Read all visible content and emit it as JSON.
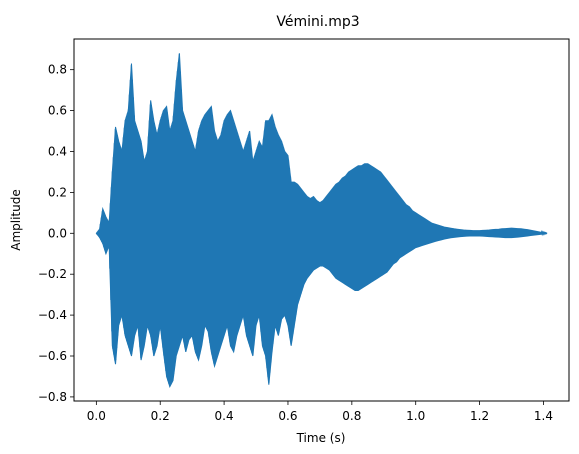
{
  "chart_data": {
    "type": "line",
    "title": "Vémini.mp3",
    "xlabel": "Time (s)",
    "ylabel": "Amplitude",
    "xlim": [
      -0.07,
      1.48
    ],
    "ylim": [
      -0.82,
      0.95
    ],
    "xticks": [
      0.0,
      0.2,
      0.4,
      0.6,
      0.8,
      1.0,
      1.2,
      1.4
    ],
    "xtick_labels": [
      "0.0",
      "0.2",
      "0.4",
      "0.6",
      "0.8",
      "1.0",
      "1.2",
      "1.4"
    ],
    "yticks": [
      -0.8,
      -0.6,
      -0.4,
      -0.2,
      0.0,
      0.2,
      0.4,
      0.6,
      0.8
    ],
    "ytick_labels": [
      "−0.8",
      "−0.6",
      "−0.4",
      "−0.2",
      "0.0",
      "0.2",
      "0.4",
      "0.6",
      "0.8"
    ],
    "grid": false,
    "line_color": "#1f77b4",
    "series": [
      {
        "x": [
          0.0,
          0.01,
          0.02,
          0.03,
          0.04,
          0.05,
          0.06,
          0.07,
          0.08,
          0.09,
          0.1,
          0.11,
          0.12,
          0.13,
          0.14,
          0.15,
          0.16,
          0.17,
          0.18,
          0.19,
          0.2,
          0.21,
          0.22,
          0.23,
          0.24,
          0.25,
          0.26,
          0.27,
          0.28,
          0.29,
          0.3,
          0.31,
          0.32,
          0.33,
          0.34,
          0.35,
          0.36,
          0.37,
          0.38,
          0.39,
          0.4,
          0.41,
          0.42,
          0.43,
          0.44,
          0.45,
          0.46,
          0.47,
          0.48,
          0.49,
          0.5,
          0.51,
          0.52,
          0.53,
          0.54,
          0.55,
          0.56,
          0.57,
          0.58,
          0.59,
          0.6,
          0.61,
          0.62,
          0.63,
          0.64,
          0.65,
          0.66,
          0.67,
          0.68,
          0.69,
          0.7,
          0.71,
          0.72,
          0.73,
          0.74,
          0.75,
          0.76,
          0.77,
          0.78,
          0.79,
          0.8,
          0.81,
          0.82,
          0.83,
          0.84,
          0.85,
          0.86,
          0.87,
          0.88,
          0.89,
          0.9,
          0.91,
          0.92,
          0.93,
          0.94,
          0.95,
          0.96,
          0.97,
          0.98,
          0.99,
          1.0,
          1.01,
          1.02,
          1.03,
          1.04,
          1.05,
          1.06,
          1.07,
          1.08,
          1.09,
          1.1,
          1.11,
          1.12,
          1.13,
          1.14,
          1.15,
          1.16,
          1.17,
          1.18,
          1.19,
          1.2,
          1.21,
          1.22,
          1.23,
          1.24,
          1.25,
          1.26,
          1.27,
          1.28,
          1.29,
          1.3,
          1.31,
          1.32,
          1.33,
          1.34,
          1.35,
          1.36,
          1.37,
          1.38,
          1.39,
          1.4,
          1.41
        ],
        "upper": [
          0.0,
          0.02,
          0.12,
          0.08,
          0.05,
          0.3,
          0.52,
          0.45,
          0.4,
          0.55,
          0.6,
          0.83,
          0.55,
          0.5,
          0.45,
          0.35,
          0.4,
          0.65,
          0.55,
          0.48,
          0.55,
          0.6,
          0.62,
          0.5,
          0.55,
          0.74,
          0.88,
          0.6,
          0.55,
          0.5,
          0.45,
          0.4,
          0.5,
          0.55,
          0.58,
          0.6,
          0.62,
          0.5,
          0.45,
          0.48,
          0.55,
          0.58,
          0.6,
          0.55,
          0.5,
          0.45,
          0.4,
          0.45,
          0.5,
          0.35,
          0.4,
          0.45,
          0.42,
          0.55,
          0.55,
          0.58,
          0.52,
          0.48,
          0.45,
          0.4,
          0.38,
          0.25,
          0.25,
          0.24,
          0.22,
          0.2,
          0.18,
          0.17,
          0.18,
          0.16,
          0.15,
          0.16,
          0.18,
          0.2,
          0.22,
          0.24,
          0.25,
          0.27,
          0.28,
          0.3,
          0.31,
          0.32,
          0.33,
          0.33,
          0.34,
          0.34,
          0.33,
          0.32,
          0.31,
          0.3,
          0.28,
          0.26,
          0.24,
          0.22,
          0.2,
          0.18,
          0.16,
          0.14,
          0.13,
          0.11,
          0.1,
          0.09,
          0.08,
          0.07,
          0.06,
          0.05,
          0.045,
          0.04,
          0.035,
          0.03,
          0.028,
          0.025,
          0.022,
          0.02,
          0.018,
          0.016,
          0.015,
          0.014,
          0.013,
          0.013,
          0.013,
          0.014,
          0.015,
          0.016,
          0.018,
          0.019,
          0.02,
          0.022,
          0.023,
          0.024,
          0.025,
          0.024,
          0.023,
          0.022,
          0.02,
          0.018,
          0.015,
          0.012,
          0.009,
          0.006,
          0.004,
          0.002
        ],
        "lower": [
          0.0,
          -0.02,
          -0.05,
          -0.1,
          -0.06,
          -0.55,
          -0.64,
          -0.45,
          -0.4,
          -0.5,
          -0.55,
          -0.6,
          -0.5,
          -0.45,
          -0.62,
          -0.55,
          -0.45,
          -0.5,
          -0.6,
          -0.55,
          -0.45,
          -0.58,
          -0.7,
          -0.75,
          -0.72,
          -0.6,
          -0.55,
          -0.5,
          -0.58,
          -0.52,
          -0.5,
          -0.58,
          -0.62,
          -0.55,
          -0.45,
          -0.48,
          -0.58,
          -0.65,
          -0.6,
          -0.55,
          -0.5,
          -0.45,
          -0.55,
          -0.58,
          -0.5,
          -0.45,
          -0.4,
          -0.5,
          -0.55,
          -0.6,
          -0.45,
          -0.4,
          -0.55,
          -0.6,
          -0.74,
          -0.58,
          -0.45,
          -0.5,
          -0.42,
          -0.4,
          -0.45,
          -0.55,
          -0.45,
          -0.35,
          -0.3,
          -0.25,
          -0.22,
          -0.2,
          -0.18,
          -0.17,
          -0.16,
          -0.16,
          -0.17,
          -0.18,
          -0.2,
          -0.22,
          -0.23,
          -0.24,
          -0.25,
          -0.26,
          -0.27,
          -0.28,
          -0.28,
          -0.27,
          -0.26,
          -0.25,
          -0.24,
          -0.23,
          -0.22,
          -0.21,
          -0.2,
          -0.19,
          -0.17,
          -0.15,
          -0.14,
          -0.12,
          -0.11,
          -0.1,
          -0.09,
          -0.08,
          -0.07,
          -0.065,
          -0.06,
          -0.055,
          -0.05,
          -0.045,
          -0.04,
          -0.036,
          -0.032,
          -0.028,
          -0.025,
          -0.022,
          -0.02,
          -0.018,
          -0.016,
          -0.015,
          -0.014,
          -0.013,
          -0.013,
          -0.013,
          -0.013,
          -0.014,
          -0.015,
          -0.016,
          -0.017,
          -0.018,
          -0.019,
          -0.02,
          -0.021,
          -0.021,
          -0.021,
          -0.02,
          -0.019,
          -0.017,
          -0.015,
          -0.013,
          -0.011,
          -0.009,
          -0.007,
          -0.005,
          -0.003,
          -0.001
        ]
      }
    ]
  }
}
